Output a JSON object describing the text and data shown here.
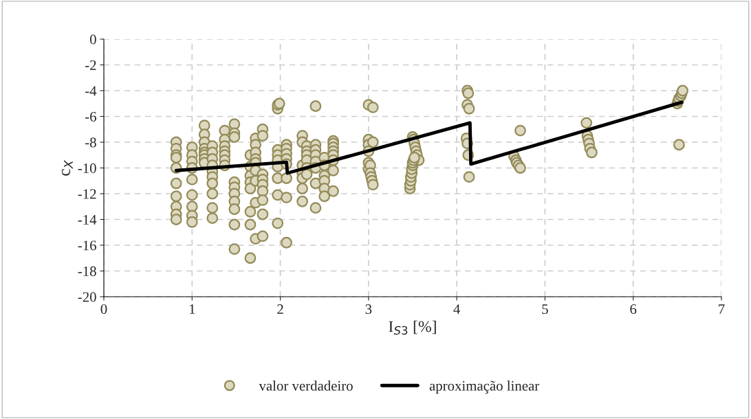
{
  "chart_data": {
    "type": "scatter",
    "xlabel": "I$_{S3}$ [%]",
    "ylabel": "c$_{X}$",
    "xlim": [
      0,
      7
    ],
    "ylim": [
      -20,
      0
    ],
    "xticks": [
      0,
      1,
      2,
      3,
      4,
      5,
      6,
      7
    ],
    "yticks": [
      -20,
      -18,
      -16,
      -14,
      -12,
      -10,
      -8,
      -6,
      -4,
      -2,
      0
    ],
    "grid": true,
    "legend": "bottom",
    "marker": "circle",
    "series": [
      {
        "name": "valor verdadeiro",
        "color": "#ddd8c0",
        "x": [
          0.82,
          0.82,
          0.82,
          0.82,
          0.82,
          0.82,
          0.82,
          0.82,
          0.82,
          0.82,
          1.0,
          1.0,
          1.0,
          1.0,
          1.0,
          1.0,
          1.0,
          1.0,
          1.0,
          1.14,
          1.14,
          1.14,
          1.14,
          1.14,
          1.14,
          1.14,
          1.14,
          1.23,
          1.23,
          1.23,
          1.23,
          1.23,
          1.23,
          1.23,
          1.23,
          1.23,
          1.23,
          1.37,
          1.37,
          1.37,
          1.37,
          1.37,
          1.37,
          1.37,
          1.48,
          1.48,
          1.48,
          1.48,
          1.48,
          1.48,
          1.48,
          1.48,
          1.48,
          1.48,
          1.66,
          1.66,
          1.66,
          1.66,
          1.66,
          1.66,
          1.66,
          1.66,
          1.72,
          1.72,
          1.72,
          1.72,
          1.72,
          1.72,
          1.72,
          1.72,
          1.72,
          1.8,
          1.8,
          1.8,
          1.8,
          1.8,
          1.8,
          1.8,
          1.8,
          1.8,
          1.97,
          1.97,
          1.97,
          1.97,
          1.97,
          1.97,
          1.97,
          1.97,
          1.97,
          1.99,
          2.07,
          2.07,
          2.07,
          2.07,
          2.07,
          2.07,
          2.07,
          2.07,
          2.25,
          2.25,
          2.25,
          2.25,
          2.25,
          2.25,
          2.25,
          2.3,
          2.3,
          2.3,
          2.3,
          2.3,
          2.3,
          2.4,
          2.4,
          2.4,
          2.4,
          2.4,
          2.4,
          2.4,
          2.4,
          2.5,
          2.5,
          2.5,
          2.5,
          2.5,
          2.5,
          2.6,
          2.6,
          2.6,
          2.6,
          2.6,
          2.6,
          2.6,
          2.6,
          3.0,
          3.0,
          3.0,
          3.0,
          3.0,
          3.0,
          3.02,
          3.02,
          3.03,
          3.04,
          3.05,
          3.05,
          3.05,
          3.5,
          3.51,
          3.52,
          3.53,
          3.54,
          3.55,
          3.57,
          3.47,
          3.47,
          3.48,
          3.48,
          3.49,
          3.49,
          3.5,
          3.5,
          3.51,
          3.52,
          4.12,
          4.13,
          4.12,
          4.14,
          4.11,
          4.12,
          4.13,
          4.14,
          4.72,
          4.65,
          4.67,
          4.68,
          4.7,
          4.72,
          5.47,
          5.48,
          5.49,
          5.5,
          5.51,
          5.53,
          6.5,
          6.51,
          6.52,
          6.54,
          6.55,
          6.56,
          6.52
        ],
        "values": [
          -8,
          -8.5,
          -9,
          -9.2,
          -10,
          -11.2,
          -12.2,
          -13,
          -13.6,
          -14,
          -8.4,
          -9,
          -9.5,
          -10,
          -10.9,
          -12.1,
          -13,
          -13.7,
          -14.2,
          -6.7,
          -7.4,
          -8,
          -8.5,
          -8.8,
          -9,
          -9.3,
          -9.6,
          -8.3,
          -8.8,
          -9.3,
          -9.8,
          -10.3,
          -10.7,
          -11.2,
          -12,
          -13.1,
          -13.9,
          -7.1,
          -7.8,
          -8.3,
          -8.7,
          -9,
          -9.4,
          -9.8,
          -6.6,
          -7.3,
          -7.6,
          -11.1,
          -11.5,
          -12,
          -12.6,
          -13.2,
          -14.4,
          -16.3,
          -9,
          -9.9,
          -10.6,
          -11.1,
          -11.6,
          -13.4,
          -14.4,
          -17,
          -7.7,
          -8.2,
          -8.8,
          -9.3,
          -9.6,
          -10.2,
          -11,
          -12.7,
          -15.5,
          -7,
          -7.5,
          -10.5,
          -10.9,
          -11.3,
          -11.8,
          -12.5,
          -13.6,
          -15.3,
          -5.4,
          -5.1,
          -8.6,
          -9,
          -9.4,
          -9.9,
          -10.8,
          -12.1,
          -14.3,
          -5,
          -8.2,
          -8.5,
          -8.9,
          -9.3,
          -9.7,
          -10.8,
          -12.3,
          -15.8,
          -7.5,
          -8,
          -9.8,
          -10.4,
          -10.8,
          -11.6,
          -12.6,
          -8.3,
          -8.7,
          -9,
          -9.4,
          -10,
          -10.5,
          -5.2,
          -8.2,
          -8.6,
          -9,
          -9.5,
          -10,
          -11.2,
          -13.1,
          -9.2,
          -9.8,
          -10.6,
          -11,
          -11.6,
          -12.2,
          -7.9,
          -8.1,
          -8.4,
          -8.7,
          -9,
          -9.4,
          -10.2,
          -11.8,
          -5.1,
          -7.8,
          -8.2,
          -8.7,
          -9.6,
          -10.1,
          -9.8,
          -10.4,
          -10.7,
          -11,
          -5.3,
          -8,
          -11.3,
          -7.6,
          -7.8,
          -8.1,
          -8.4,
          -8.7,
          -9,
          -9.4,
          -11.6,
          -11.3,
          -11,
          -10.7,
          -10.4,
          -10.1,
          -9.8,
          -9.6,
          -9.4,
          -9.2,
          -4,
          -4.2,
          -5.1,
          -5.4,
          -7.7,
          -8.1,
          -9,
          -10.7,
          -7.1,
          -9.1,
          -9.4,
          -9.6,
          -9.8,
          -10,
          -6.5,
          -7.5,
          -7.8,
          -8.1,
          -8.5,
          -8.8,
          -5,
          -4.8,
          -4.6,
          -4.4,
          -4.2,
          -4,
          -8.2
        ]
      },
      {
        "name": "aproximação linear",
        "type": "line",
        "color": "#000000",
        "marker": "none",
        "x": [
          0.82,
          2.07,
          2.08,
          4.15,
          4.16,
          6.55
        ],
        "values": [
          -10.2,
          -9.55,
          -10.4,
          -6.5,
          -9.7,
          -4.9
        ]
      }
    ]
  }
}
